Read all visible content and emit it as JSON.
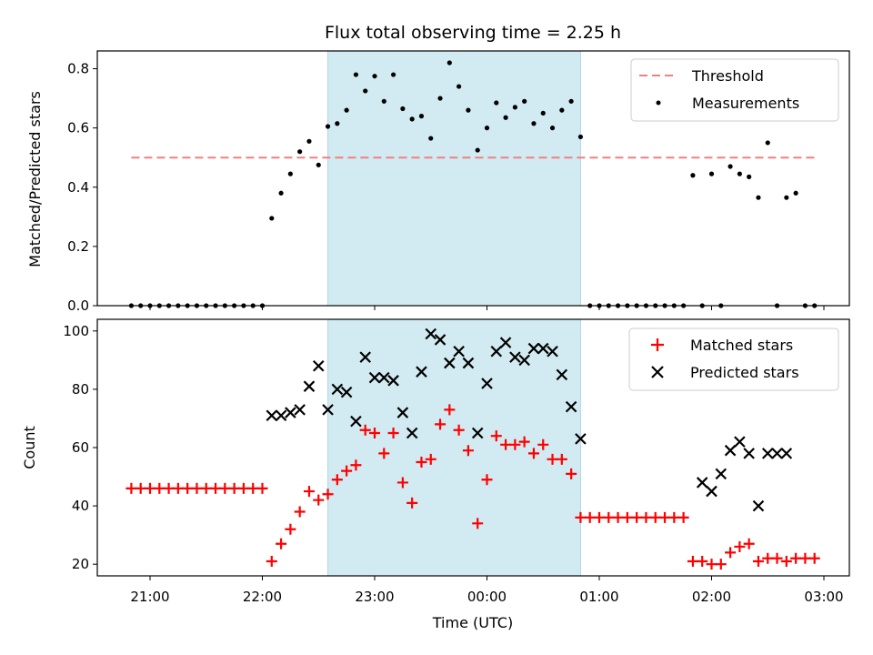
{
  "chart_data": [
    {
      "type": "scatter",
      "title": "Flux total observing time = 2.25 h",
      "ylabel": "Matched/Predicted stars",
      "xlabel": "",
      "ylim": [
        0,
        0.86
      ],
      "yticks": [
        "0.0",
        "0.2",
        "0.4",
        "0.6",
        "0.8"
      ],
      "ytick_values": [
        0,
        0.2,
        0.4,
        0.6,
        0.8
      ],
      "legend_position": "top-right",
      "shaded_span": {
        "start": "22:35",
        "end": "00:50",
        "color": "#add8e6"
      },
      "threshold": {
        "name": "Threshold",
        "value": 0.5,
        "start": "20:50",
        "end": "02:55",
        "color": "#f08080"
      },
      "series": [
        {
          "name": "Measurements",
          "marker": "dot",
          "color": "#000000",
          "x": [
            "20:50",
            "20:55",
            "21:00",
            "21:05",
            "21:10",
            "21:15",
            "21:20",
            "21:25",
            "21:30",
            "21:35",
            "21:40",
            "21:45",
            "21:50",
            "21:55",
            "22:00",
            "22:05",
            "22:10",
            "22:15",
            "22:20",
            "22:25",
            "22:30",
            "22:35",
            "22:40",
            "22:45",
            "22:50",
            "22:55",
            "23:00",
            "23:05",
            "23:10",
            "23:15",
            "23:20",
            "23:25",
            "23:30",
            "23:35",
            "23:40",
            "23:45",
            "23:50",
            "23:55",
            "00:00",
            "00:05",
            "00:10",
            "00:15",
            "00:20",
            "00:25",
            "00:30",
            "00:35",
            "00:40",
            "00:45",
            "00:50",
            "00:55",
            "01:00",
            "01:05",
            "01:10",
            "01:15",
            "01:20",
            "01:25",
            "01:30",
            "01:35",
            "01:40",
            "01:45",
            "01:50",
            "01:55",
            "02:00",
            "02:05",
            "02:10",
            "02:15",
            "02:20",
            "02:25",
            "02:30",
            "02:35",
            "02:40",
            "02:45",
            "02:50",
            "02:55"
          ],
          "y": [
            0,
            0,
            0,
            0,
            0,
            0,
            0,
            0,
            0,
            0,
            0,
            0,
            0,
            0,
            0,
            0.295,
            0.38,
            0.445,
            0.52,
            0.555,
            0.475,
            0.605,
            0.615,
            0.66,
            0.78,
            0.725,
            0.775,
            0.69,
            0.78,
            0.665,
            0.63,
            0.64,
            0.565,
            0.7,
            0.82,
            0.74,
            0.66,
            0.525,
            0.6,
            0.685,
            0.635,
            0.67,
            0.69,
            0.615,
            0.65,
            0.6,
            0.66,
            0.69,
            0.57,
            0,
            0,
            0,
            0,
            0,
            0,
            0,
            0,
            0,
            0,
            0,
            0.44,
            0,
            0.445,
            0,
            0.47,
            0.445,
            0.435,
            0.365,
            0.55,
            0,
            0.365,
            0.38,
            0,
            0
          ]
        }
      ]
    },
    {
      "type": "scatter",
      "title": "",
      "ylabel": "Count",
      "xlabel": "Time (UTC)",
      "ylim": [
        16,
        104
      ],
      "yticks": [
        "20",
        "40",
        "60",
        "80",
        "100"
      ],
      "ytick_values": [
        20,
        40,
        60,
        80,
        100
      ],
      "legend_position": "top-right",
      "xticks": [
        "21:00",
        "22:00",
        "23:00",
        "00:00",
        "01:00",
        "02:00",
        "03:00"
      ],
      "series": [
        {
          "name": "Matched stars",
          "marker": "plus",
          "color": "#ff0000",
          "x": [
            "20:50",
            "20:55",
            "21:00",
            "21:05",
            "21:10",
            "21:15",
            "21:20",
            "21:25",
            "21:30",
            "21:35",
            "21:40",
            "21:45",
            "21:50",
            "21:55",
            "22:00",
            "22:05",
            "22:10",
            "22:15",
            "22:20",
            "22:25",
            "22:30",
            "22:35",
            "22:40",
            "22:45",
            "22:50",
            "22:55",
            "23:00",
            "23:05",
            "23:10",
            "23:15",
            "23:20",
            "23:25",
            "23:30",
            "23:35",
            "23:40",
            "23:45",
            "23:50",
            "23:55",
            "00:00",
            "00:05",
            "00:10",
            "00:15",
            "00:20",
            "00:25",
            "00:30",
            "00:35",
            "00:40",
            "00:45",
            "00:50",
            "00:55",
            "01:00",
            "01:05",
            "01:10",
            "01:15",
            "01:20",
            "01:25",
            "01:30",
            "01:35",
            "01:40",
            "01:45",
            "01:50",
            "01:55",
            "02:00",
            "02:05",
            "02:10",
            "02:15",
            "02:20",
            "02:25",
            "02:30",
            "02:35",
            "02:40",
            "02:45",
            "02:50",
            "02:55"
          ],
          "y": [
            46,
            46,
            46,
            46,
            46,
            46,
            46,
            46,
            46,
            46,
            46,
            46,
            46,
            46,
            46,
            21,
            27,
            32,
            38,
            45,
            42,
            44,
            49,
            52,
            54,
            66,
            65,
            58,
            65,
            48,
            41,
            55,
            56,
            68,
            73,
            66,
            59,
            34,
            49,
            64,
            61,
            61,
            62,
            58,
            61,
            56,
            56,
            51,
            36,
            36,
            36,
            36,
            36,
            36,
            36,
            36,
            36,
            36,
            36,
            36,
            21,
            21,
            20,
            20,
            24,
            26,
            27,
            21,
            22,
            22,
            21,
            22,
            22,
            22
          ]
        },
        {
          "name": "Predicted stars",
          "marker": "x",
          "color": "#000000",
          "x": [
            "22:05",
            "22:10",
            "22:15",
            "22:20",
            "22:25",
            "22:30",
            "22:35",
            "22:40",
            "22:45",
            "22:50",
            "22:55",
            "23:00",
            "23:05",
            "23:10",
            "23:15",
            "23:20",
            "23:25",
            "23:30",
            "23:35",
            "23:40",
            "23:45",
            "23:50",
            "23:55",
            "00:00",
            "00:05",
            "00:10",
            "00:15",
            "00:20",
            "00:25",
            "00:30",
            "00:35",
            "00:40",
            "00:45",
            "00:50",
            "01:55",
            "02:00",
            "02:05",
            "02:10",
            "02:15",
            "02:20",
            "02:25",
            "02:30",
            "02:35",
            "02:40"
          ],
          "y": [
            71,
            71,
            72,
            73,
            81,
            88,
            73,
            80,
            79,
            69,
            91,
            84,
            84,
            83,
            72,
            65,
            86,
            99,
            97,
            89,
            93,
            89,
            65,
            82,
            93,
            96,
            91,
            90,
            94,
            94,
            93,
            85,
            74,
            63,
            48,
            45,
            51,
            59,
            62,
            58,
            40,
            58,
            58,
            58
          ]
        }
      ]
    }
  ]
}
